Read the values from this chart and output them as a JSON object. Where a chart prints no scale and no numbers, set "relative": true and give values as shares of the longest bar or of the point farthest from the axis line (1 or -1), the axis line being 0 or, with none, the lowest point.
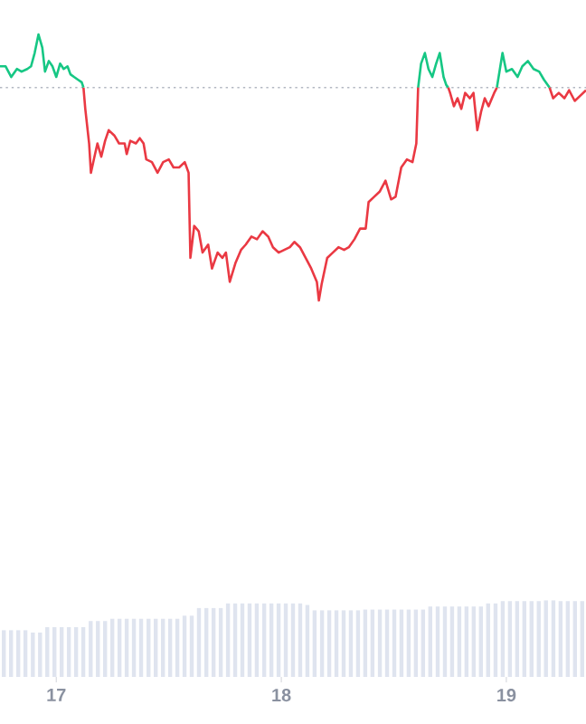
{
  "chart_data": [
    {
      "type": "line",
      "relative": true,
      "xlim": [
        16.75,
        19.354
      ],
      "xticks": [
        17,
        18,
        19
      ],
      "tick_labels": false,
      "series": [
        {
          "color": "#16c784",
          "x": [
            16.75,
            16.775,
            16.8,
            16.825,
            16.846,
            16.871,
            16.888,
            16.904,
            16.921,
            16.938,
            16.95,
            16.967,
            16.983,
            17.0,
            17.017,
            17.033,
            17.05,
            17.063,
            17.079,
            17.096,
            17.113,
            17.121,
            17.833,
            18.608,
            18.621,
            18.638,
            18.654,
            18.671,
            18.688,
            18.704,
            18.721,
            18.733,
            18.742,
            18.833,
            18.958,
            18.983,
            19.0,
            19.025,
            19.05,
            19.071,
            19.096,
            19.121,
            19.146,
            19.167,
            19.192
          ],
          "values": [
            0.88,
            0.88,
            0.84,
            0.87,
            0.86,
            0.87,
            0.88,
            0.93,
            1.0,
            0.95,
            0.86,
            0.9,
            0.88,
            0.84,
            0.89,
            0.87,
            0.88,
            0.85,
            0.84,
            0.83,
            0.82,
            0.8,
            null,
            0.8,
            0.89,
            0.93,
            0.87,
            0.84,
            0.89,
            0.93,
            0.84,
            0.81,
            0.8,
            null,
            0.8,
            0.93,
            0.86,
            0.87,
            0.84,
            0.88,
            0.9,
            0.87,
            0.86,
            0.83,
            0.8
          ]
        },
        {
          "color": "#ea3943",
          "x": [
            17.121,
            17.129,
            17.146,
            17.154,
            17.167,
            17.183,
            17.2,
            17.217,
            17.233,
            17.258,
            17.279,
            17.304,
            17.313,
            17.329,
            17.354,
            17.371,
            17.388,
            17.4,
            17.425,
            17.45,
            17.475,
            17.5,
            17.521,
            17.546,
            17.571,
            17.588,
            17.596,
            17.613,
            17.633,
            17.65,
            17.675,
            17.692,
            17.717,
            17.738,
            17.754,
            17.771,
            17.796,
            17.821,
            17.842,
            17.867,
            17.892,
            17.917,
            17.942,
            17.963,
            17.988,
            18.013,
            18.038,
            18.058,
            18.083,
            18.108,
            18.133,
            18.158,
            18.167,
            18.179,
            18.204,
            18.229,
            18.254,
            18.279,
            18.3,
            18.325,
            18.35,
            18.375,
            18.388,
            18.413,
            18.438,
            18.463,
            18.488,
            18.508,
            18.533,
            18.558,
            18.583,
            18.6,
            18.608,
            18.667,
            18.742,
            18.75,
            18.767,
            18.783,
            18.8,
            18.817,
            18.838,
            18.854,
            18.871,
            18.888,
            18.904,
            18.921,
            18.946,
            18.958,
            19.083,
            19.192,
            19.208,
            19.233,
            19.258,
            19.279,
            19.304,
            19.329,
            19.354
          ],
          "values": [
            0.8,
            0.72,
            0.59,
            0.48,
            0.53,
            0.59,
            0.54,
            0.6,
            0.64,
            0.62,
            0.59,
            0.59,
            0.55,
            0.6,
            0.59,
            0.61,
            0.59,
            0.53,
            0.52,
            0.48,
            0.52,
            0.53,
            0.5,
            0.5,
            0.52,
            0.48,
            0.16,
            0.28,
            0.26,
            0.18,
            0.21,
            0.12,
            0.18,
            0.16,
            0.18,
            0.07,
            0.14,
            0.19,
            0.21,
            0.24,
            0.23,
            0.26,
            0.24,
            0.2,
            0.18,
            0.19,
            0.2,
            0.22,
            0.2,
            0.16,
            0.12,
            0.07,
            0.0,
            0.06,
            0.16,
            0.18,
            0.2,
            0.19,
            0.2,
            0.23,
            0.27,
            0.27,
            0.37,
            0.39,
            0.41,
            0.45,
            0.38,
            0.39,
            0.5,
            0.53,
            0.52,
            0.59,
            0.8,
            null,
            0.8,
            0.78,
            0.73,
            0.76,
            0.72,
            0.78,
            0.76,
            0.78,
            0.64,
            0.71,
            0.76,
            0.73,
            0.78,
            0.8,
            null,
            0.8,
            0.76,
            0.78,
            0.76,
            0.79,
            0.75,
            0.77,
            0.79
          ]
        }
      ],
      "ref_lines": [
        {
          "axis": "y",
          "value": 0.8,
          "color": "#b3b8c2",
          "line_style": "dotted"
        }
      ]
    },
    {
      "type": "bar",
      "relative": true,
      "xlim": [
        16.75,
        19.354
      ],
      "tick_labels": "x",
      "color": "#dfe4ef",
      "xticks": [
        17,
        18,
        19
      ],
      "x": [
        16.767,
        16.799,
        16.831,
        16.863,
        16.896,
        16.928,
        16.96,
        16.992,
        17.024,
        17.056,
        17.088,
        17.12,
        17.153,
        17.185,
        17.217,
        17.249,
        17.281,
        17.313,
        17.345,
        17.377,
        17.41,
        17.442,
        17.474,
        17.506,
        17.538,
        17.57,
        17.602,
        17.634,
        17.667,
        17.699,
        17.731,
        17.763,
        17.795,
        17.827,
        17.859,
        17.891,
        17.924,
        17.956,
        17.988,
        18.02,
        18.052,
        18.084,
        18.116,
        18.148,
        18.181,
        18.213,
        18.245,
        18.277,
        18.309,
        18.341,
        18.373,
        18.405,
        18.438,
        18.47,
        18.502,
        18.534,
        18.566,
        18.598,
        18.63,
        18.662,
        18.695,
        18.727,
        18.759,
        18.791,
        18.823,
        18.855,
        18.887,
        18.919,
        18.952,
        18.984,
        19.016,
        19.048,
        19.08,
        19.112,
        19.144,
        19.176,
        19.209,
        19.241,
        19.273,
        19.305,
        19.337
      ],
      "values": [
        0.61,
        0.61,
        0.61,
        0.61,
        0.58,
        0.58,
        0.65,
        0.65,
        0.65,
        0.65,
        0.65,
        0.65,
        0.73,
        0.73,
        0.73,
        0.76,
        0.76,
        0.76,
        0.76,
        0.76,
        0.76,
        0.76,
        0.76,
        0.76,
        0.76,
        0.8,
        0.8,
        0.9,
        0.9,
        0.9,
        0.9,
        0.96,
        0.96,
        0.96,
        0.96,
        0.96,
        0.96,
        0.96,
        0.96,
        0.96,
        0.96,
        0.96,
        0.94,
        0.87,
        0.87,
        0.87,
        0.87,
        0.87,
        0.87,
        0.87,
        0.88,
        0.88,
        0.88,
        0.88,
        0.88,
        0.88,
        0.88,
        0.88,
        0.88,
        0.92,
        0.92,
        0.92,
        0.92,
        0.92,
        0.92,
        0.92,
        0.92,
        0.96,
        0.96,
        0.99,
        0.99,
        0.99,
        0.99,
        0.99,
        0.99,
        1.0,
        1.0,
        0.99,
        0.99,
        0.99,
        0.99
      ]
    }
  ]
}
